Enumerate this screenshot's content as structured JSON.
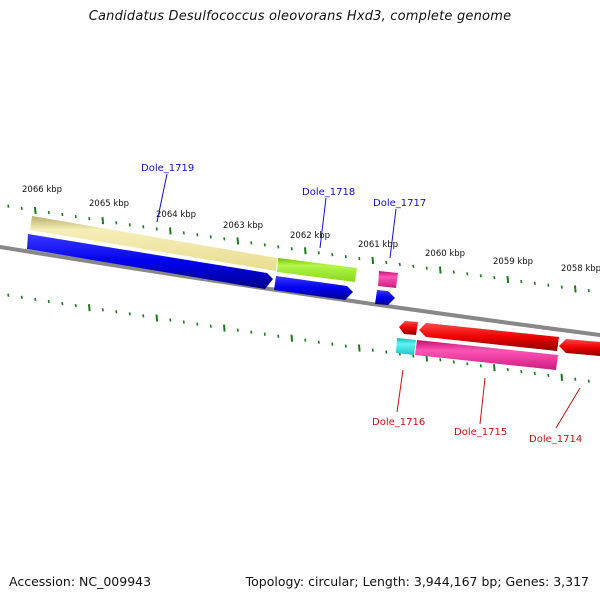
{
  "title": "Candidatus Desulfococcus oleovorans Hxd3, complete genome",
  "footer": {
    "accession": "Accession: NC_009943",
    "summary": "Topology: circular; Length: 3,944,167 bp; Genes: 3,317"
  },
  "scale_labels": [
    "2066 kbp",
    "2065 kbp",
    "2064 kbp",
    "2063 kbp",
    "2062 kbp",
    "2061 kbp",
    "2060 kbp",
    "2059 kbp",
    "2058 kbp"
  ],
  "genes": [
    {
      "name": "Dole_1719",
      "strand": "+",
      "colors": {
        "arrow": "#0000ee",
        "band": "#f3e8a6"
      }
    },
    {
      "name": "Dole_1718",
      "strand": "+",
      "colors": {
        "arrow": "#0000ee",
        "band": "#99ee22"
      }
    },
    {
      "name": "Dole_1717",
      "strand": "+",
      "colors": {
        "arrow": "#0000ee",
        "band": "#ee2299"
      }
    },
    {
      "name": "Dole_1716",
      "strand": "-",
      "colors": {
        "arrow": "#ee0000",
        "band": "#22dddd"
      }
    },
    {
      "name": "Dole_1715",
      "strand": "-",
      "colors": {
        "arrow": "#ee0000",
        "band": "#ee2299"
      }
    },
    {
      "name": "Dole_1714",
      "strand": "-",
      "colors": {
        "arrow": "#ee0000",
        "band": "#ee0000"
      }
    }
  ],
  "colors": {
    "backbone": "#888888",
    "ticks": "#1a7a1a",
    "forward_label": "#1010cc",
    "reverse_label": "#cc1010"
  }
}
